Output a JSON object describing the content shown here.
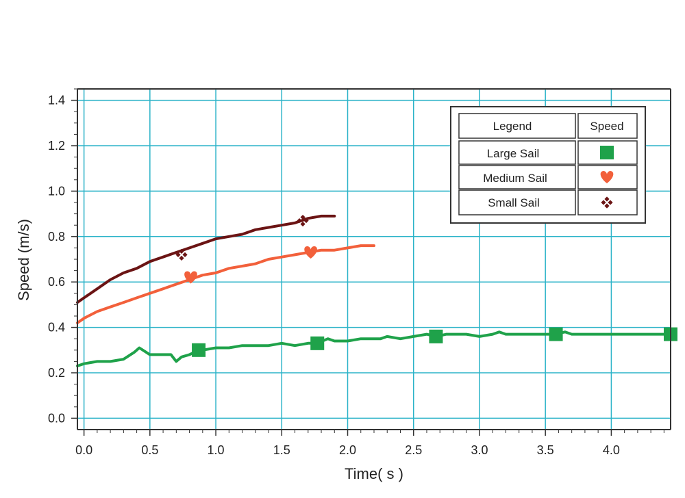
{
  "chart_data": {
    "type": "line",
    "title": "",
    "xlabel": "Time( s )",
    "ylabel": "Speed (m/s)",
    "xlim": [
      -0.05,
      4.45
    ],
    "ylim": [
      -0.05,
      1.45
    ],
    "x_ticks": [
      "0.0",
      "0.5",
      "1.0",
      "1.5",
      "2.0",
      "2.5",
      "3.0",
      "3.5",
      "4.0"
    ],
    "y_ticks": [
      "0.0",
      "0.2",
      "0.4",
      "0.6",
      "0.8",
      "1.0",
      "1.2",
      "1.4"
    ],
    "grid": true,
    "grid_color": "#2bb3c8",
    "legend": {
      "placement": "top-right",
      "header": "Legend",
      "column_header": "Speed"
    },
    "series": [
      {
        "name": "Large Sail",
        "color": "#1fa24a",
        "marker": "square",
        "x": [
          -0.05,
          0.0,
          0.1,
          0.2,
          0.3,
          0.38,
          0.42,
          0.5,
          0.6,
          0.66,
          0.7,
          0.74,
          0.8,
          0.87,
          0.9,
          1.0,
          1.1,
          1.2,
          1.3,
          1.4,
          1.5,
          1.6,
          1.7,
          1.77,
          1.85,
          1.9,
          2.0,
          2.1,
          2.2,
          2.25,
          2.3,
          2.4,
          2.5,
          2.6,
          2.67,
          2.75,
          2.8,
          2.9,
          3.0,
          3.1,
          3.15,
          3.2,
          3.3,
          3.4,
          3.5,
          3.58,
          3.65,
          3.7,
          3.8,
          3.9,
          4.0,
          4.1,
          4.2,
          4.3,
          4.4,
          4.45
        ],
        "y": [
          0.23,
          0.24,
          0.25,
          0.25,
          0.26,
          0.29,
          0.31,
          0.28,
          0.28,
          0.28,
          0.25,
          0.27,
          0.28,
          0.3,
          0.3,
          0.31,
          0.31,
          0.32,
          0.32,
          0.32,
          0.33,
          0.32,
          0.33,
          0.33,
          0.35,
          0.34,
          0.34,
          0.35,
          0.35,
          0.35,
          0.36,
          0.35,
          0.36,
          0.37,
          0.36,
          0.37,
          0.37,
          0.37,
          0.36,
          0.37,
          0.38,
          0.37,
          0.37,
          0.37,
          0.37,
          0.37,
          0.38,
          0.37,
          0.37,
          0.37,
          0.37,
          0.37,
          0.37,
          0.37,
          0.37,
          0.37
        ],
        "marker_x": [
          0.87,
          1.77,
          2.67,
          3.58,
          4.45
        ],
        "marker_y": [
          0.3,
          0.33,
          0.36,
          0.37,
          0.37
        ]
      },
      {
        "name": "Medium Sail",
        "color": "#f2603b",
        "marker": "heart",
        "x": [
          -0.05,
          0.0,
          0.1,
          0.2,
          0.3,
          0.4,
          0.5,
          0.6,
          0.7,
          0.8,
          0.9,
          1.0,
          1.1,
          1.2,
          1.3,
          1.4,
          1.5,
          1.6,
          1.7,
          1.8,
          1.9,
          2.0,
          2.1,
          2.2
        ],
        "y": [
          0.42,
          0.44,
          0.47,
          0.49,
          0.51,
          0.53,
          0.55,
          0.57,
          0.59,
          0.61,
          0.63,
          0.64,
          0.66,
          0.67,
          0.68,
          0.7,
          0.71,
          0.72,
          0.73,
          0.74,
          0.74,
          0.75,
          0.76,
          0.76
        ],
        "marker_x": [
          0.81,
          1.72
        ],
        "marker_y": [
          0.62,
          0.73
        ]
      },
      {
        "name": "Small Sail",
        "color": "#6b1414",
        "marker": "diamond-cross",
        "x": [
          -0.05,
          0.0,
          0.1,
          0.2,
          0.3,
          0.4,
          0.5,
          0.6,
          0.7,
          0.8,
          0.9,
          1.0,
          1.1,
          1.2,
          1.3,
          1.4,
          1.5,
          1.6,
          1.7,
          1.8,
          1.9
        ],
        "y": [
          0.51,
          0.53,
          0.57,
          0.61,
          0.64,
          0.66,
          0.69,
          0.71,
          0.73,
          0.75,
          0.77,
          0.79,
          0.8,
          0.81,
          0.83,
          0.84,
          0.85,
          0.86,
          0.88,
          0.89,
          0.89
        ],
        "marker_x": [
          0.74,
          1.66
        ],
        "marker_y": [
          0.72,
          0.87
        ]
      }
    ]
  }
}
